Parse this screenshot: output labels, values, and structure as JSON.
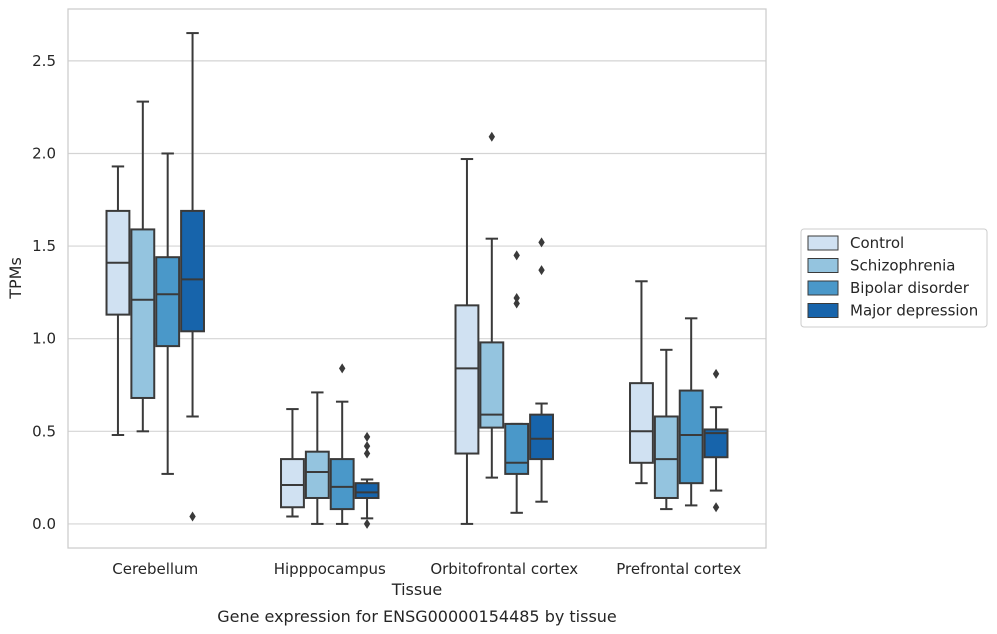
{
  "chart_data": {
    "type": "box",
    "xlabel": "Tissue",
    "ylabel": "TPMs",
    "caption": "Gene expression for ENSG00000154485 by tissue",
    "ylim": [
      -0.13,
      2.78
    ],
    "yticks": [
      "0.0",
      "0.5",
      "1.0",
      "1.5",
      "2.0",
      "2.5"
    ],
    "ytick_values": [
      0.0,
      0.5,
      1.0,
      1.5,
      2.0,
      2.5
    ],
    "grid": "horizontal",
    "legend_position": "right",
    "categories": [
      "Cerebellum",
      "Hipppocampus",
      "Orbitofrontal cortex",
      "Prefrontal cortex"
    ],
    "series": [
      {
        "name": "Control",
        "color": "#d0e1f2",
        "boxes": [
          {
            "whisker_low": 0.48,
            "q1": 1.13,
            "median": 1.41,
            "q3": 1.69,
            "whisker_high": 1.93,
            "outliers": []
          },
          {
            "whisker_low": 0.04,
            "q1": 0.09,
            "median": 0.21,
            "q3": 0.35,
            "whisker_high": 0.62,
            "outliers": []
          },
          {
            "whisker_low": 0.0,
            "q1": 0.38,
            "median": 0.84,
            "q3": 1.18,
            "whisker_high": 1.97,
            "outliers": []
          },
          {
            "whisker_low": 0.22,
            "q1": 0.33,
            "median": 0.5,
            "q3": 0.76,
            "whisker_high": 1.31,
            "outliers": []
          }
        ]
      },
      {
        "name": "Schizophrenia",
        "color": "#94c4df",
        "boxes": [
          {
            "whisker_low": 0.5,
            "q1": 0.68,
            "median": 1.21,
            "q3": 1.59,
            "whisker_high": 2.28,
            "outliers": []
          },
          {
            "whisker_low": 0.0,
            "q1": 0.14,
            "median": 0.28,
            "q3": 0.39,
            "whisker_high": 0.71,
            "outliers": []
          },
          {
            "whisker_low": 0.25,
            "q1": 0.52,
            "median": 0.59,
            "q3": 0.98,
            "whisker_high": 1.54,
            "outliers": [
              2.09
            ]
          },
          {
            "whisker_low": 0.08,
            "q1": 0.14,
            "median": 0.35,
            "q3": 0.58,
            "whisker_high": 0.94,
            "outliers": []
          }
        ]
      },
      {
        "name": "Bipolar disorder",
        "color": "#4a98c9",
        "boxes": [
          {
            "whisker_low": 0.27,
            "q1": 0.96,
            "median": 1.24,
            "q3": 1.44,
            "whisker_high": 2.0,
            "outliers": []
          },
          {
            "whisker_low": 0.0,
            "q1": 0.08,
            "median": 0.2,
            "q3": 0.35,
            "whisker_high": 0.66,
            "outliers": [
              0.84
            ]
          },
          {
            "whisker_low": 0.06,
            "q1": 0.27,
            "median": 0.33,
            "q3": 0.54,
            "whisker_high": 0.54,
            "outliers": [
              1.19,
              1.22,
              1.45
            ]
          },
          {
            "whisker_low": 0.1,
            "q1": 0.22,
            "median": 0.48,
            "q3": 0.72,
            "whisker_high": 1.11,
            "outliers": []
          }
        ]
      },
      {
        "name": "Major depression",
        "color": "#1764ab",
        "boxes": [
          {
            "whisker_low": 0.58,
            "q1": 1.04,
            "median": 1.32,
            "q3": 1.69,
            "whisker_high": 2.65,
            "outliers": [
              0.04
            ]
          },
          {
            "whisker_low": 0.03,
            "q1": 0.14,
            "median": 0.17,
            "q3": 0.22,
            "whisker_high": 0.24,
            "outliers": [
              0.0,
              0.38,
              0.42,
              0.47
            ]
          },
          {
            "whisker_low": 0.12,
            "q1": 0.35,
            "median": 0.46,
            "q3": 0.59,
            "whisker_high": 0.65,
            "outliers": [
              1.37,
              1.52
            ]
          },
          {
            "whisker_low": 0.18,
            "q1": 0.36,
            "median": 0.49,
            "q3": 0.51,
            "whisker_high": 0.63,
            "outliers": [
              0.09,
              0.81
            ]
          }
        ]
      }
    ]
  }
}
